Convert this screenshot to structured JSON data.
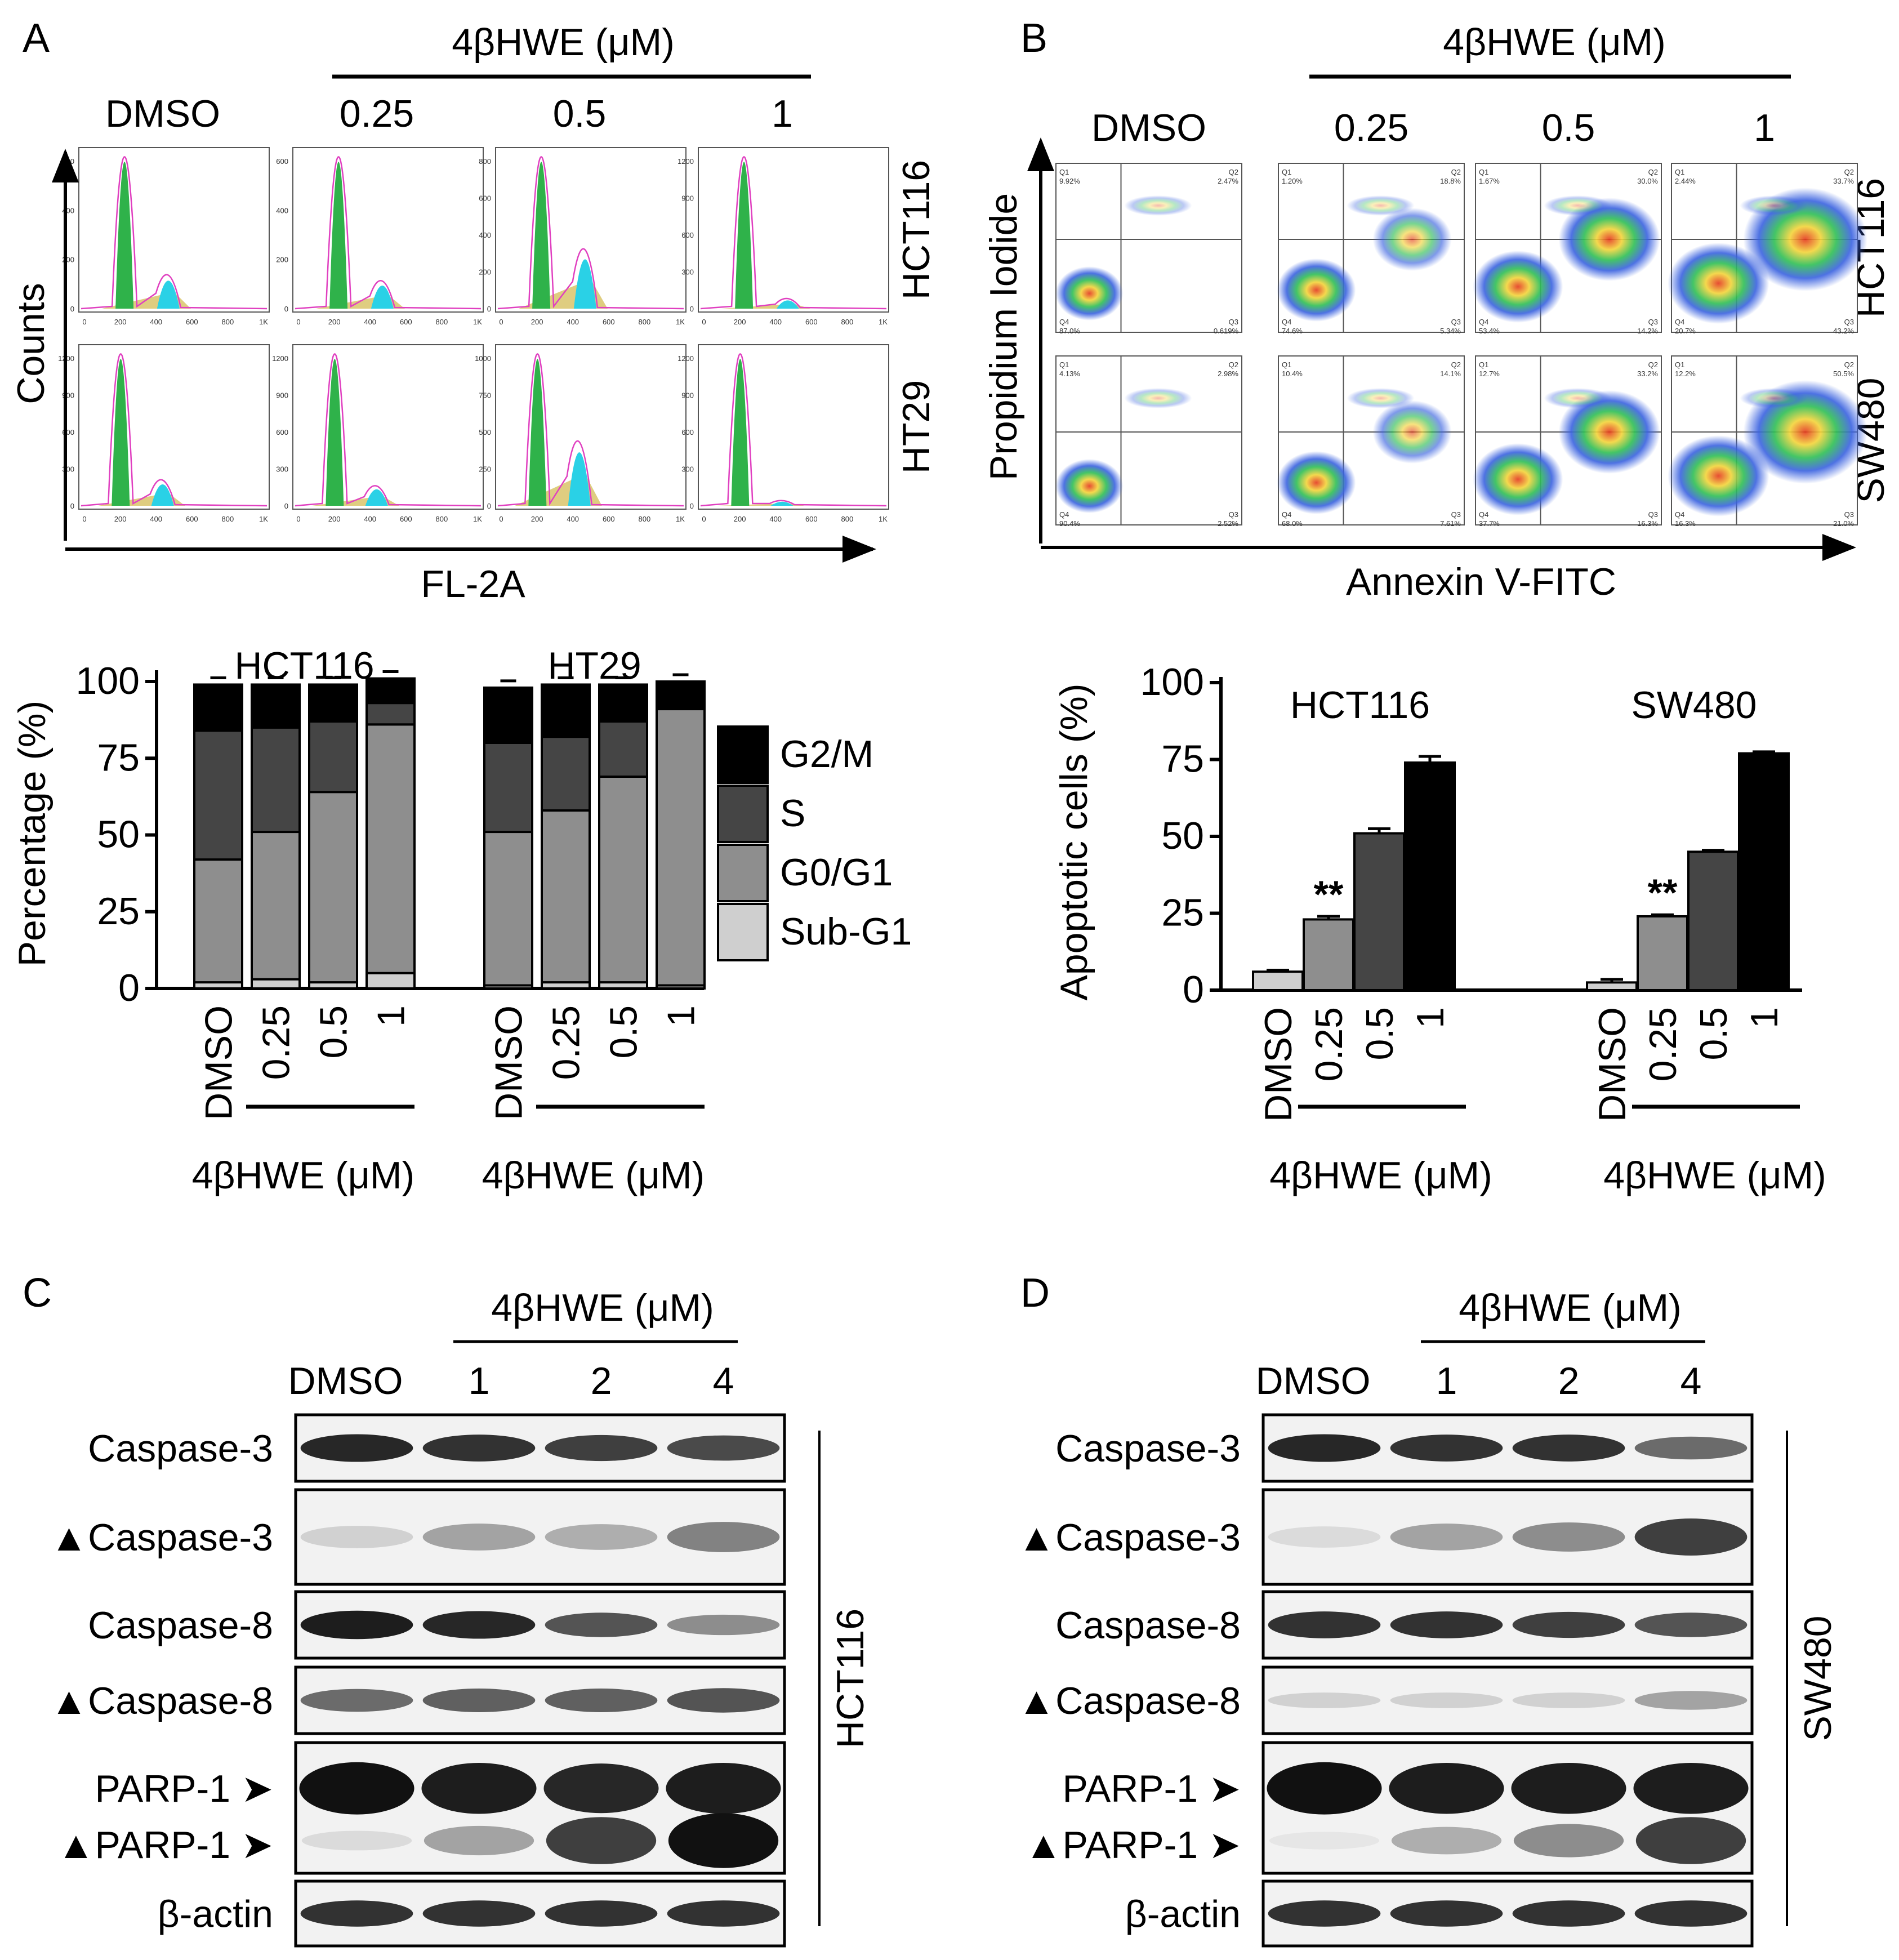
{
  "panel_letters": [
    "A",
    "B",
    "C",
    "D"
  ],
  "treatment_label": "4βHWE (μM)",
  "panel_a": {
    "column_labels": [
      "DMSO",
      "0.25",
      "0.5",
      "1"
    ],
    "row_labels": [
      "HCT116",
      "HT29"
    ],
    "y_axis_label": "Counts",
    "x_axis_label": "FL-2A",
    "x_ticks": [
      "0",
      "200",
      "400",
      "600",
      "800",
      "1K"
    ],
    "y_ticks": [
      [
        [
          "0",
          "200",
          "400",
          "600"
        ],
        [
          "0",
          "200",
          "400",
          "600"
        ],
        [
          "0",
          "200",
          "400",
          "600",
          "800"
        ],
        [
          "0",
          "300",
          "600",
          "900",
          "1200"
        ]
      ],
      [
        [
          "0",
          "300",
          "600",
          "900",
          "1200"
        ],
        [
          "0",
          "300",
          "600",
          "900",
          "1200"
        ],
        [
          "0",
          "250",
          "500",
          "750",
          "1000"
        ],
        [
          "0",
          "300",
          "600",
          "900",
          "1200"
        ]
      ]
    ]
  },
  "panel_b": {
    "column_labels": [
      "DMSO",
      "0.25",
      "0.5",
      "1"
    ],
    "row_labels": [
      "HCT116",
      "SW480"
    ],
    "y_axis_label": "Propidium Iodide",
    "x_axis_label": "Annexin V-FITC",
    "quadrant_labels": [
      "Q1",
      "Q2",
      "Q3",
      "Q4"
    ],
    "quadrant_percents": [
      [
        [
          "9.92%",
          "2.47%",
          "0.619%",
          "87.0%"
        ],
        [
          "1.20%",
          "18.8%",
          "5.34%",
          "74.6%"
        ],
        [
          "1.67%",
          "30.0%",
          "14.2%",
          "53.4%"
        ],
        [
          "2.44%",
          "33.7%",
          "43.2%",
          "20.7%"
        ]
      ],
      [
        [
          "4.13%",
          "2.98%",
          "2.52%",
          "90.4%"
        ],
        [
          "10.4%",
          "14.1%",
          "7.61%",
          "68.0%"
        ],
        [
          "12.7%",
          "33.2%",
          "16.3%",
          "37.7%"
        ],
        [
          "12.2%",
          "50.5%",
          "21.0%",
          "16.3%"
        ]
      ]
    ]
  },
  "panel_c": {
    "lane_labels": [
      "DMSO",
      "1",
      "2",
      "4"
    ],
    "cell_line": "HCT116",
    "band_labels": [
      "Caspase-3",
      "▲Caspase-3",
      "Caspase-8",
      "▲Caspase-8",
      "PARP-1 ➤",
      "▲PARP-1 ➤",
      "β-actin"
    ]
  },
  "panel_d": {
    "lane_labels": [
      "DMSO",
      "1",
      "2",
      "4"
    ],
    "cell_line": "SW480",
    "band_labels": [
      "Caspase-3",
      "▲Caspase-3",
      "Caspase-8",
      "▲Caspase-8",
      "PARP-1 ➤",
      "▲PARP-1 ➤",
      "β-actin"
    ]
  },
  "colors": {
    "sub_g1": "#cfcfcf",
    "g0_g1": "#8e8e8e",
    "s": "#454545",
    "g2_m": "#000000",
    "apop_dmso": "#cfcfcf",
    "apop_025": "#8e8e8e",
    "apop_05": "#454545",
    "apop_1": "#000000",
    "hist_green": "#2fb24a",
    "hist_yellow": "#d9c46a",
    "hist_cyan": "#2ad1e6",
    "hist_magenta": "#e040c0"
  },
  "chart_data": [
    {
      "type": "bar",
      "stacked": true,
      "ylabel": "Percentage (%)",
      "ylim": [
        0,
        100
      ],
      "yticks": [
        "0",
        "25",
        "50",
        "75",
        "100"
      ],
      "xtick_labels": [
        "DMSO",
        "0.25",
        "0.5",
        "1"
      ],
      "legend": {
        "position": "right"
      },
      "groups": [
        {
          "name": "HCT116",
          "categories": [
            "DMSO",
            "0.25",
            "0.5",
            "1"
          ]
        },
        {
          "name": "HT29",
          "categories": [
            "DMSO",
            "0.25",
            "0.5",
            "1"
          ]
        }
      ],
      "series": [
        {
          "name": "Sub-G1",
          "values": [
            [
              2,
              3,
              2,
              5
            ],
            [
              1,
              2,
              2,
              1
            ]
          ]
        },
        {
          "name": "G0/G1",
          "values": [
            [
              40,
              48,
              62,
              81
            ],
            [
              50,
              56,
              67,
              90
            ]
          ]
        },
        {
          "name": "S",
          "values": [
            [
              42,
              34,
              23,
              7
            ],
            [
              29,
              24,
              18,
              0
            ]
          ]
        },
        {
          "name": "G2/M",
          "values": [
            [
              15,
              14,
              12,
              8
            ],
            [
              18,
              17,
              12,
              9
            ]
          ]
        }
      ]
    },
    {
      "type": "bar",
      "ylabel": "Apoptotic cells (%)",
      "ylim": [
        0,
        100
      ],
      "yticks": [
        "0",
        "25",
        "50",
        "75",
        "100"
      ],
      "xtick_labels": [
        "DMSO",
        "0.25",
        "0.5",
        "1"
      ],
      "groups": [
        {
          "name": "HCT116",
          "categories": [
            "DMSO",
            "0.25",
            "0.5",
            "1"
          ],
          "values": [
            6,
            23,
            51,
            74
          ],
          "errors": [
            0.5,
            1,
            1.5,
            2
          ],
          "annotations": [
            "",
            "**",
            "",
            ""
          ]
        },
        {
          "name": "SW480",
          "categories": [
            "DMSO",
            "0.25",
            "0.5",
            "1"
          ],
          "values": [
            2.5,
            24,
            45,
            77
          ],
          "errors": [
            1,
            0.5,
            0.5,
            0.5
          ],
          "annotations": [
            "",
            "**",
            "",
            ""
          ]
        }
      ]
    }
  ]
}
